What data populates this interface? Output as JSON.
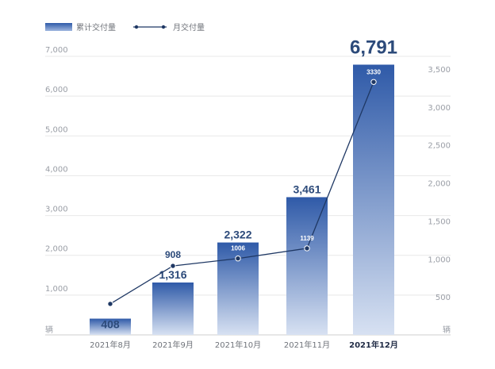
{
  "chart_data": {
    "type": "bar",
    "categories": [
      "2021年8月",
      "2021年9月",
      "2021年10月",
      "2021年11月",
      "2021年12月"
    ],
    "highlight_category": "2021年12月",
    "series": [
      {
        "name": "累计交付量",
        "type": "bar",
        "axis": "left",
        "values": [
          408,
          1316,
          2322,
          3461,
          6791
        ],
        "labels": [
          "408",
          "1,316",
          "2,322",
          "3,461",
          "6,791"
        ]
      },
      {
        "name": "月交付量",
        "type": "line",
        "axis": "right",
        "values": [
          408,
          908,
          1006,
          1139,
          3330
        ],
        "labels": [
          "",
          "908",
          "1006",
          "1139",
          "3330"
        ]
      }
    ],
    "y_left": {
      "ylim": [
        0,
        7000
      ],
      "ticks": [
        1000,
        2000,
        3000,
        4000,
        5000,
        6000,
        7000
      ],
      "tick_labels": [
        "1,000",
        "2,000",
        "3,000",
        "4,000",
        "5,000",
        "6,000",
        "7,000"
      ],
      "unit": "辆"
    },
    "y_right": {
      "ylim": [
        0,
        3500
      ],
      "ticks": [
        500,
        1000,
        1500,
        2000,
        2500,
        3000,
        3500
      ],
      "tick_labels": [
        "500",
        "1,000",
        "1,500",
        "2,000",
        "2,500",
        "3,000",
        "3,500"
      ],
      "unit": "辆"
    },
    "grid": true,
    "legend": "top-left",
    "colors": {
      "bar_top": "#2f5aa8",
      "bar_bottom": "#d7e1f2",
      "line": "#1f3864",
      "label": "#2c4a7a",
      "grid": "#e8e8e8"
    }
  }
}
